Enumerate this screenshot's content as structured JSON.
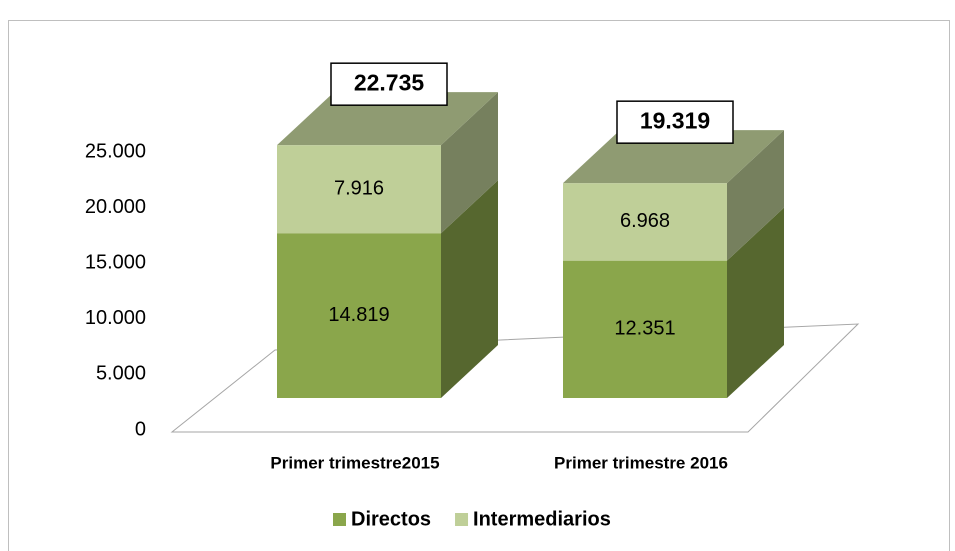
{
  "chart_data": {
    "type": "bar3d_stacked",
    "categories": [
      "Primer trimestre2015",
      "Primer trimestre 2016"
    ],
    "series": [
      {
        "name": "Directos",
        "color": "#8aa64b",
        "values": [
          14819,
          12351
        ],
        "value_labels": [
          "14.819",
          "12.351"
        ]
      },
      {
        "name": "Intermediarios",
        "color": "#bfcf98",
        "values": [
          7916,
          6968
        ],
        "value_labels": [
          "7.916",
          "6.968"
        ]
      }
    ],
    "totals": {
      "values": [
        22735,
        19319
      ],
      "value_labels": [
        "22.735",
        "19.319"
      ]
    },
    "ylim": [
      0,
      25000
    ],
    "yticks": [
      0,
      {
        "value": 5000,
        "label": "5.000"
      },
      {
        "value": 10000,
        "label": "10.000"
      },
      {
        "value": 15000,
        "label": "15.000"
      },
      {
        "value": 20000,
        "label": "20.000"
      },
      {
        "value": 25000,
        "label": "25.000"
      }
    ],
    "legend": "bottom"
  }
}
